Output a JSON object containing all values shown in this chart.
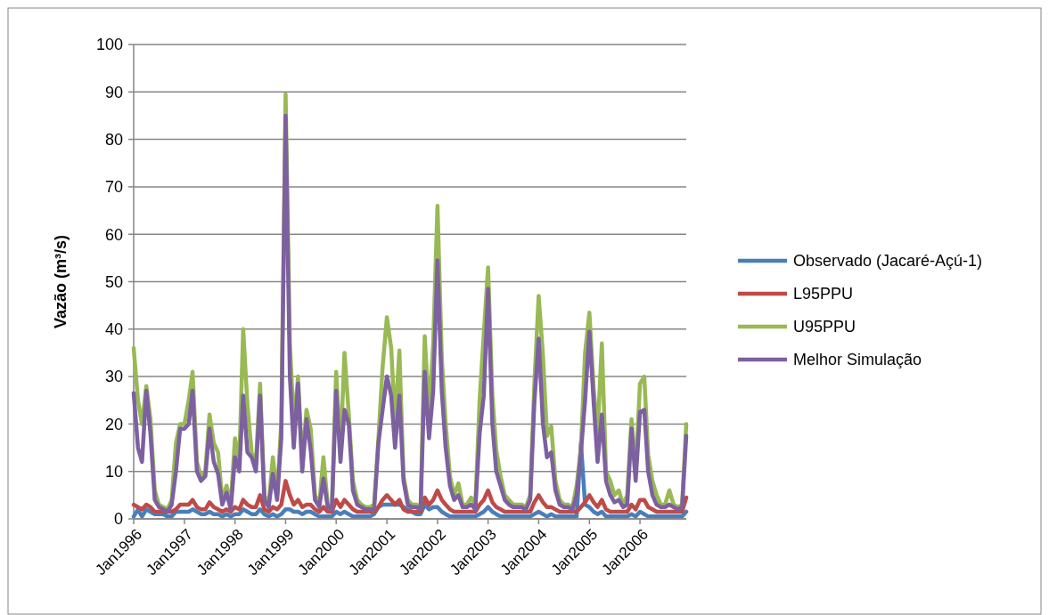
{
  "chart_data": {
    "type": "line",
    "ylabel": "Vazão (m³/s)",
    "x": [
      "1996-01",
      "1996-02",
      "1996-03",
      "1996-04",
      "1996-05",
      "1996-06",
      "1996-07",
      "1996-08",
      "1996-09",
      "1996-10",
      "1996-11",
      "1996-12",
      "1997-01",
      "1997-02",
      "1997-03",
      "1997-04",
      "1997-05",
      "1997-06",
      "1997-07",
      "1997-08",
      "1997-09",
      "1997-10",
      "1997-11",
      "1997-12",
      "1998-01",
      "1998-02",
      "1998-03",
      "1998-04",
      "1998-05",
      "1998-06",
      "1998-07",
      "1998-08",
      "1998-09",
      "1998-10",
      "1998-11",
      "1998-12",
      "1999-01",
      "1999-02",
      "1999-03",
      "1999-04",
      "1999-05",
      "1999-06",
      "1999-07",
      "1999-08",
      "1999-09",
      "1999-10",
      "1999-11",
      "1999-12",
      "2000-01",
      "2000-02",
      "2000-03",
      "2000-04",
      "2000-05",
      "2000-06",
      "2000-07",
      "2000-08",
      "2000-09",
      "2000-10",
      "2000-11",
      "2000-12",
      "2001-01",
      "2001-02",
      "2001-03",
      "2001-04",
      "2001-05",
      "2001-06",
      "2001-07",
      "2001-08",
      "2001-09",
      "2001-10",
      "2001-11",
      "2001-12",
      "2002-01",
      "2002-02",
      "2002-03",
      "2002-04",
      "2002-05",
      "2002-06",
      "2002-07",
      "2002-08",
      "2002-09",
      "2002-10",
      "2002-11",
      "2002-12",
      "2003-01",
      "2003-02",
      "2003-03",
      "2003-04",
      "2003-05",
      "2003-06",
      "2003-07",
      "2003-08",
      "2003-09",
      "2003-10",
      "2003-11",
      "2003-12",
      "2004-01",
      "2004-02",
      "2004-03",
      "2004-04",
      "2004-05",
      "2004-06",
      "2004-07",
      "2004-08",
      "2004-09",
      "2004-10",
      "2004-11",
      "2004-12",
      "2005-01",
      "2005-02",
      "2005-03",
      "2005-04",
      "2005-05",
      "2005-06",
      "2005-07",
      "2005-08",
      "2005-09",
      "2005-10",
      "2005-11",
      "2005-12",
      "2006-01",
      "2006-02",
      "2006-03",
      "2006-04",
      "2006-05",
      "2006-06",
      "2006-07",
      "2006-08",
      "2006-09",
      "2006-10",
      "2006-11",
      "2006-12"
    ],
    "series": [
      {
        "name": "Observado (Jacaré-Açú-1)",
        "color": "#4a7ebb",
        "values": [
          0.5,
          2,
          0.5,
          2,
          1.5,
          1,
          1,
          1,
          0.5,
          0.5,
          1.5,
          1.5,
          1.5,
          1.5,
          2,
          1.5,
          1,
          1,
          1.5,
          1,
          1,
          0.5,
          1,
          0.5,
          1,
          1,
          2,
          1.5,
          1,
          1,
          2,
          1,
          0.5,
          1,
          0.5,
          1,
          2,
          2,
          1.5,
          1.5,
          1,
          1.5,
          1.5,
          1,
          0.5,
          0.5,
          0.5,
          0.5,
          1.5,
          1,
          1.5,
          1,
          0.5,
          0.5,
          0.5,
          0.5,
          0.5,
          1,
          2.5,
          3,
          3,
          3,
          3,
          3,
          2.5,
          2,
          1.5,
          1,
          1,
          3,
          2,
          2.5,
          2.5,
          1.5,
          1,
          0.5,
          0.5,
          0.5,
          0.5,
          0.5,
          0.5,
          0.5,
          1,
          1.5,
          2.5,
          1.5,
          1,
          0.5,
          0.5,
          0.5,
          0.5,
          0.5,
          0.5,
          0.5,
          0.5,
          1,
          1.5,
          1,
          0.5,
          1,
          0.5,
          0.5,
          0.5,
          0.5,
          0.5,
          0.5,
          16,
          3,
          2.5,
          1.5,
          1,
          1.5,
          0.5,
          0.5,
          0.5,
          0.5,
          0.5,
          0.5,
          1,
          0.5,
          1.5,
          1,
          0.5,
          0.5,
          0.5,
          0.5,
          0.5,
          0.5,
          0.5,
          0.5,
          0.5,
          1.5
        ]
      },
      {
        "name": "L95PPU",
        "color": "#be4b48",
        "values": [
          3,
          2.5,
          2,
          3,
          2.5,
          1.5,
          1.5,
          1.5,
          1.5,
          1.5,
          2,
          3,
          3,
          3,
          4,
          2.5,
          2,
          2,
          3.5,
          2.5,
          2,
          1.5,
          2,
          1.5,
          2.5,
          2,
          4,
          3,
          2.5,
          2.5,
          5,
          2,
          1.5,
          2.5,
          2,
          3,
          8,
          5,
          3,
          4,
          2.5,
          3,
          3,
          2,
          1.5,
          2.5,
          1.5,
          1.5,
          4,
          2.5,
          4,
          3,
          2,
          1.5,
          1.5,
          1.5,
          1.5,
          1.5,
          2.5,
          4,
          5,
          4,
          3,
          4,
          2,
          1.5,
          1.5,
          1.5,
          1.5,
          4.5,
          3,
          4,
          6,
          4,
          3,
          2,
          1.5,
          1.5,
          1.5,
          1.5,
          1.5,
          1.5,
          3,
          4,
          6,
          3.5,
          2.5,
          2,
          1.5,
          1.5,
          1.5,
          1.5,
          1.5,
          1.5,
          1.5,
          3.5,
          5,
          3.5,
          2.5,
          2.5,
          2,
          1.5,
          1.5,
          1.5,
          1.5,
          1.5,
          2.5,
          3.5,
          5,
          3.5,
          2.5,
          4,
          2,
          1.5,
          1.5,
          1.5,
          1.5,
          1.5,
          3,
          2,
          4,
          4,
          2.5,
          2,
          1.5,
          1.5,
          1.5,
          1.5,
          1.5,
          1.5,
          1.5,
          4.5
        ]
      },
      {
        "name": "U95PPU",
        "color": "#98b954",
        "values": [
          36,
          25,
          20,
          28,
          21,
          6,
          3,
          2.5,
          2,
          4,
          16,
          20,
          20,
          25,
          31,
          12,
          9,
          10,
          22,
          16,
          14,
          4,
          7,
          3,
          17,
          12,
          40,
          24,
          14,
          12,
          28.5,
          5,
          3,
          13,
          5,
          20.5,
          89.5,
          37,
          20,
          30,
          12,
          23,
          19,
          5,
          3,
          13,
          3,
          2.5,
          31,
          14,
          35,
          22,
          8,
          4,
          3,
          2.5,
          2.5,
          3,
          17,
          32,
          42.5,
          36,
          20,
          35.5,
          9,
          4,
          3,
          3,
          2.5,
          38.5,
          22,
          37,
          66,
          34,
          20,
          9,
          5,
          7.5,
          3,
          3,
          4.5,
          3,
          25,
          39,
          53,
          26,
          14.5,
          9,
          5,
          4,
          3,
          3,
          3,
          2.5,
          5,
          28.5,
          47,
          34.5,
          17.5,
          19.5,
          8,
          4,
          3,
          3,
          2.5,
          7,
          15,
          35,
          43.5,
          27.5,
          18,
          37,
          10,
          8,
          5,
          6,
          3,
          5,
          21,
          10,
          28.5,
          30,
          13.5,
          8,
          5,
          3,
          3,
          6,
          3,
          2.5,
          3,
          20
        ]
      },
      {
        "name": "Melhor Simulação",
        "color": "#7d60a0",
        "values": [
          26.5,
          15,
          12,
          27,
          18,
          4,
          2.5,
          2,
          1.5,
          3,
          10,
          19,
          19,
          20,
          27,
          10,
          8,
          9,
          19,
          12,
          9.5,
          3,
          5.5,
          2,
          13,
          10,
          26,
          14,
          13,
          10,
          26,
          4,
          2.5,
          9.5,
          4,
          17,
          85,
          30,
          15,
          28.5,
          10,
          21,
          14.5,
          4,
          2.5,
          8.5,
          2.5,
          2,
          27,
          12,
          23,
          20,
          6,
          3,
          2.5,
          2,
          2,
          2,
          16,
          23,
          30,
          26,
          15,
          26,
          8,
          3,
          2.5,
          2.5,
          2,
          31,
          17,
          27,
          54.5,
          27,
          15,
          7,
          4,
          5,
          2.5,
          2.5,
          3,
          2,
          18,
          26,
          48.5,
          20,
          10,
          7,
          4,
          3,
          2.5,
          2.5,
          2.5,
          2,
          4,
          24.5,
          38,
          20,
          13,
          14,
          6,
          3,
          2.5,
          2.5,
          2,
          5,
          14,
          25,
          39.5,
          24.5,
          12,
          22,
          8,
          5,
          3.5,
          4,
          2.5,
          3,
          19,
          8,
          22.5,
          23,
          10,
          5,
          3,
          2.5,
          2.5,
          3,
          2.5,
          2,
          2.5,
          17.5
        ]
      }
    ],
    "xlim": [
      "1996-01",
      "2006-12"
    ],
    "xticks": [
      {
        "value": "1996-01",
        "label": "Jan1996"
      },
      {
        "value": "1997-01",
        "label": "Jan1997"
      },
      {
        "value": "1998-01",
        "label": "Jan1998"
      },
      {
        "value": "1999-01",
        "label": "Jan1999"
      },
      {
        "value": "2000-01",
        "label": "Jan2000"
      },
      {
        "value": "2001-01",
        "label": "Jan2001"
      },
      {
        "value": "2002-01",
        "label": "Jan2002"
      },
      {
        "value": "2003-01",
        "label": "Jan2003"
      },
      {
        "value": "2004-01",
        "label": "Jan2004"
      },
      {
        "value": "2005-01",
        "label": "Jan2005"
      },
      {
        "value": "2006-01",
        "label": "Jan2006"
      }
    ],
    "ylim": [
      0,
      100
    ],
    "yticks": [
      0,
      10,
      20,
      30,
      40,
      50,
      60,
      70,
      80,
      90,
      100
    ],
    "grid": "y",
    "legend": "right",
    "line_style": "solid",
    "marker": "none"
  }
}
